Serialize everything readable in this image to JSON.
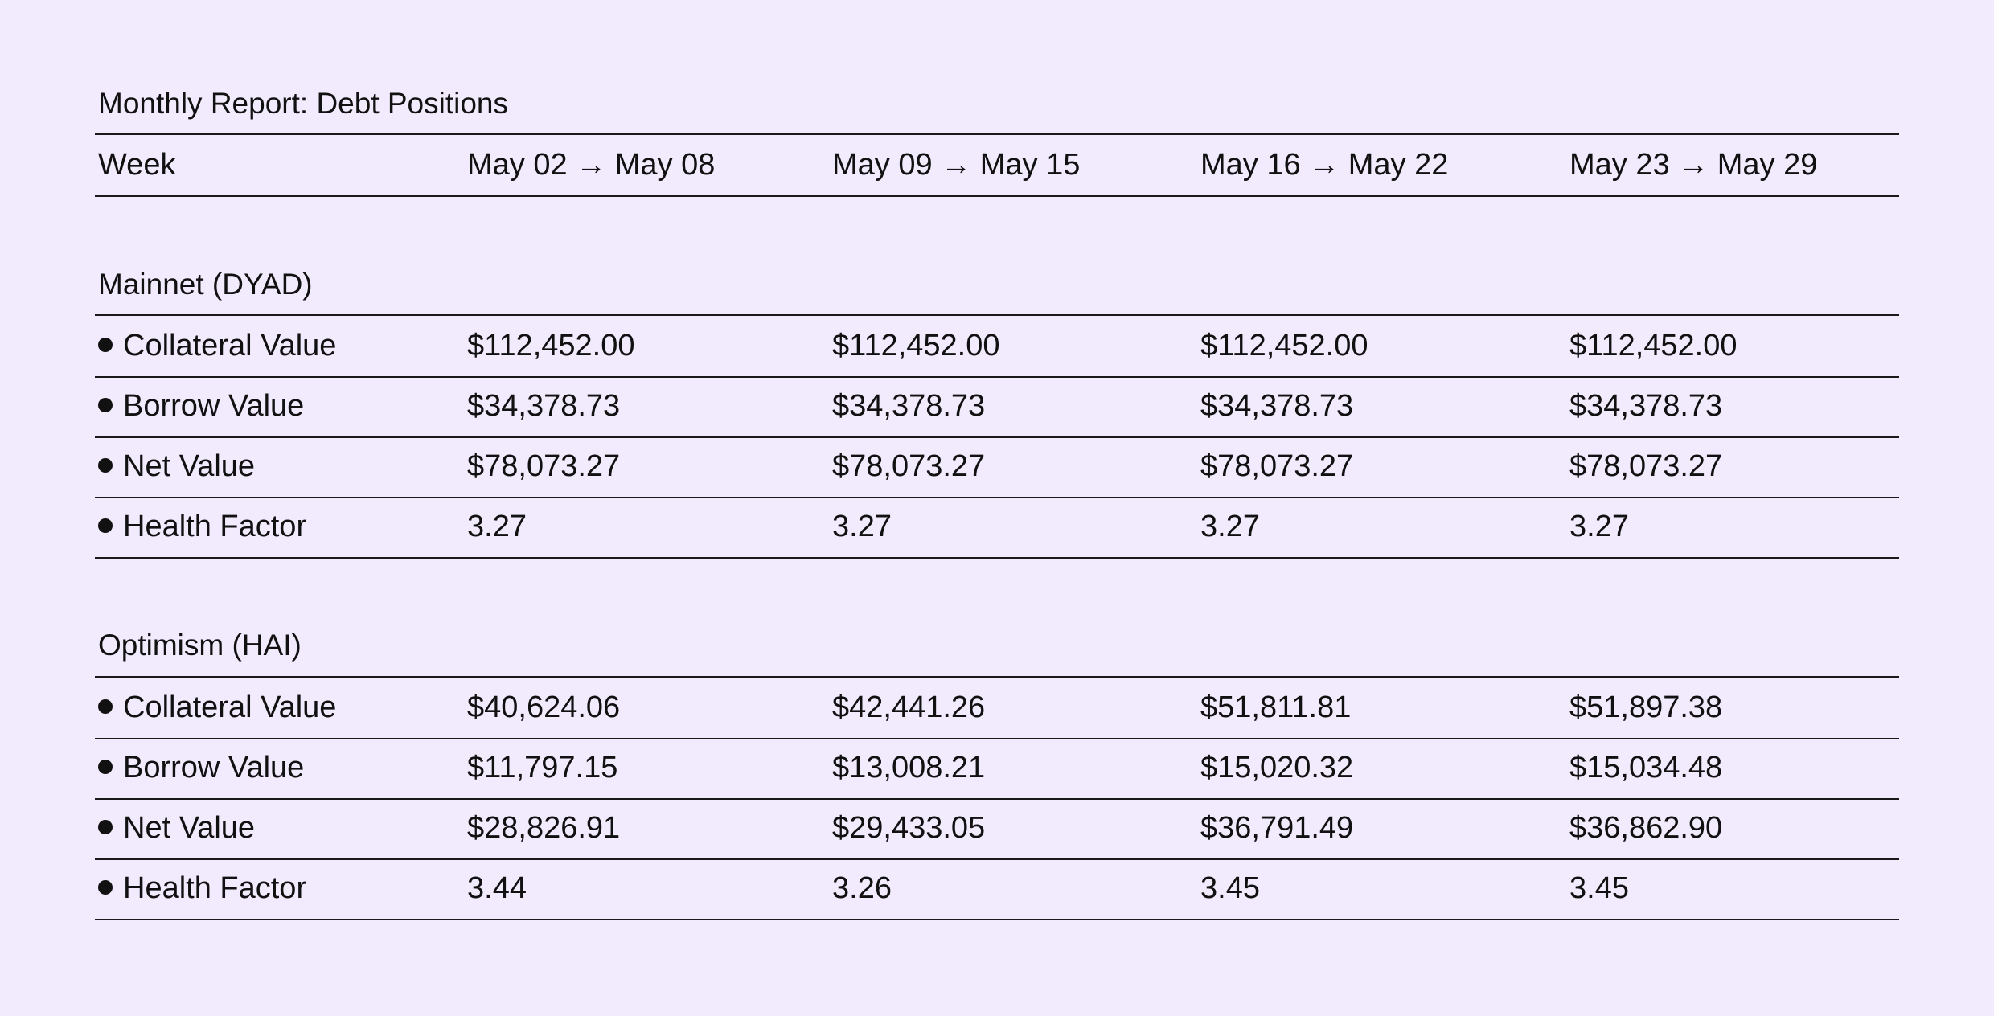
{
  "title": "Monthly Report: Debt Positions",
  "header": {
    "label": "Week",
    "weeks": [
      "May 02 → May 08",
      "May 09 → May 15",
      "May 16 → May 22",
      "May 23 → May 29"
    ]
  },
  "sections": [
    {
      "title": "Mainnet (DYAD)",
      "rows": [
        {
          "label": "Collateral Value",
          "values": [
            "$112,452.00",
            "$112,452.00",
            "$112,452.00",
            "$112,452.00"
          ]
        },
        {
          "label": "Borrow Value",
          "values": [
            "$34,378.73",
            "$34,378.73",
            "$34,378.73",
            "$34,378.73"
          ]
        },
        {
          "label": "Net Value",
          "values": [
            "$78,073.27",
            "$78,073.27",
            "$78,073.27",
            "$78,073.27"
          ]
        },
        {
          "label": "Health Factor",
          "values": [
            "3.27",
            "3.27",
            "3.27",
            "3.27"
          ]
        }
      ]
    },
    {
      "title": "Optimism (HAI)",
      "rows": [
        {
          "label": "Collateral Value",
          "values": [
            "$40,624.06",
            "$42,441.26",
            "$51,811.81",
            "$51,897.38"
          ]
        },
        {
          "label": "Borrow Value",
          "values": [
            "$11,797.15",
            "$13,008.21",
            "$15,020.32",
            "$15,034.48"
          ]
        },
        {
          "label": "Net Value",
          "values": [
            "$28,826.91",
            "$29,433.05",
            "$36,791.49",
            "$36,862.90"
          ]
        },
        {
          "label": "Health Factor",
          "values": [
            "3.44",
            "3.26",
            "3.45",
            "3.45"
          ]
        }
      ]
    }
  ]
}
